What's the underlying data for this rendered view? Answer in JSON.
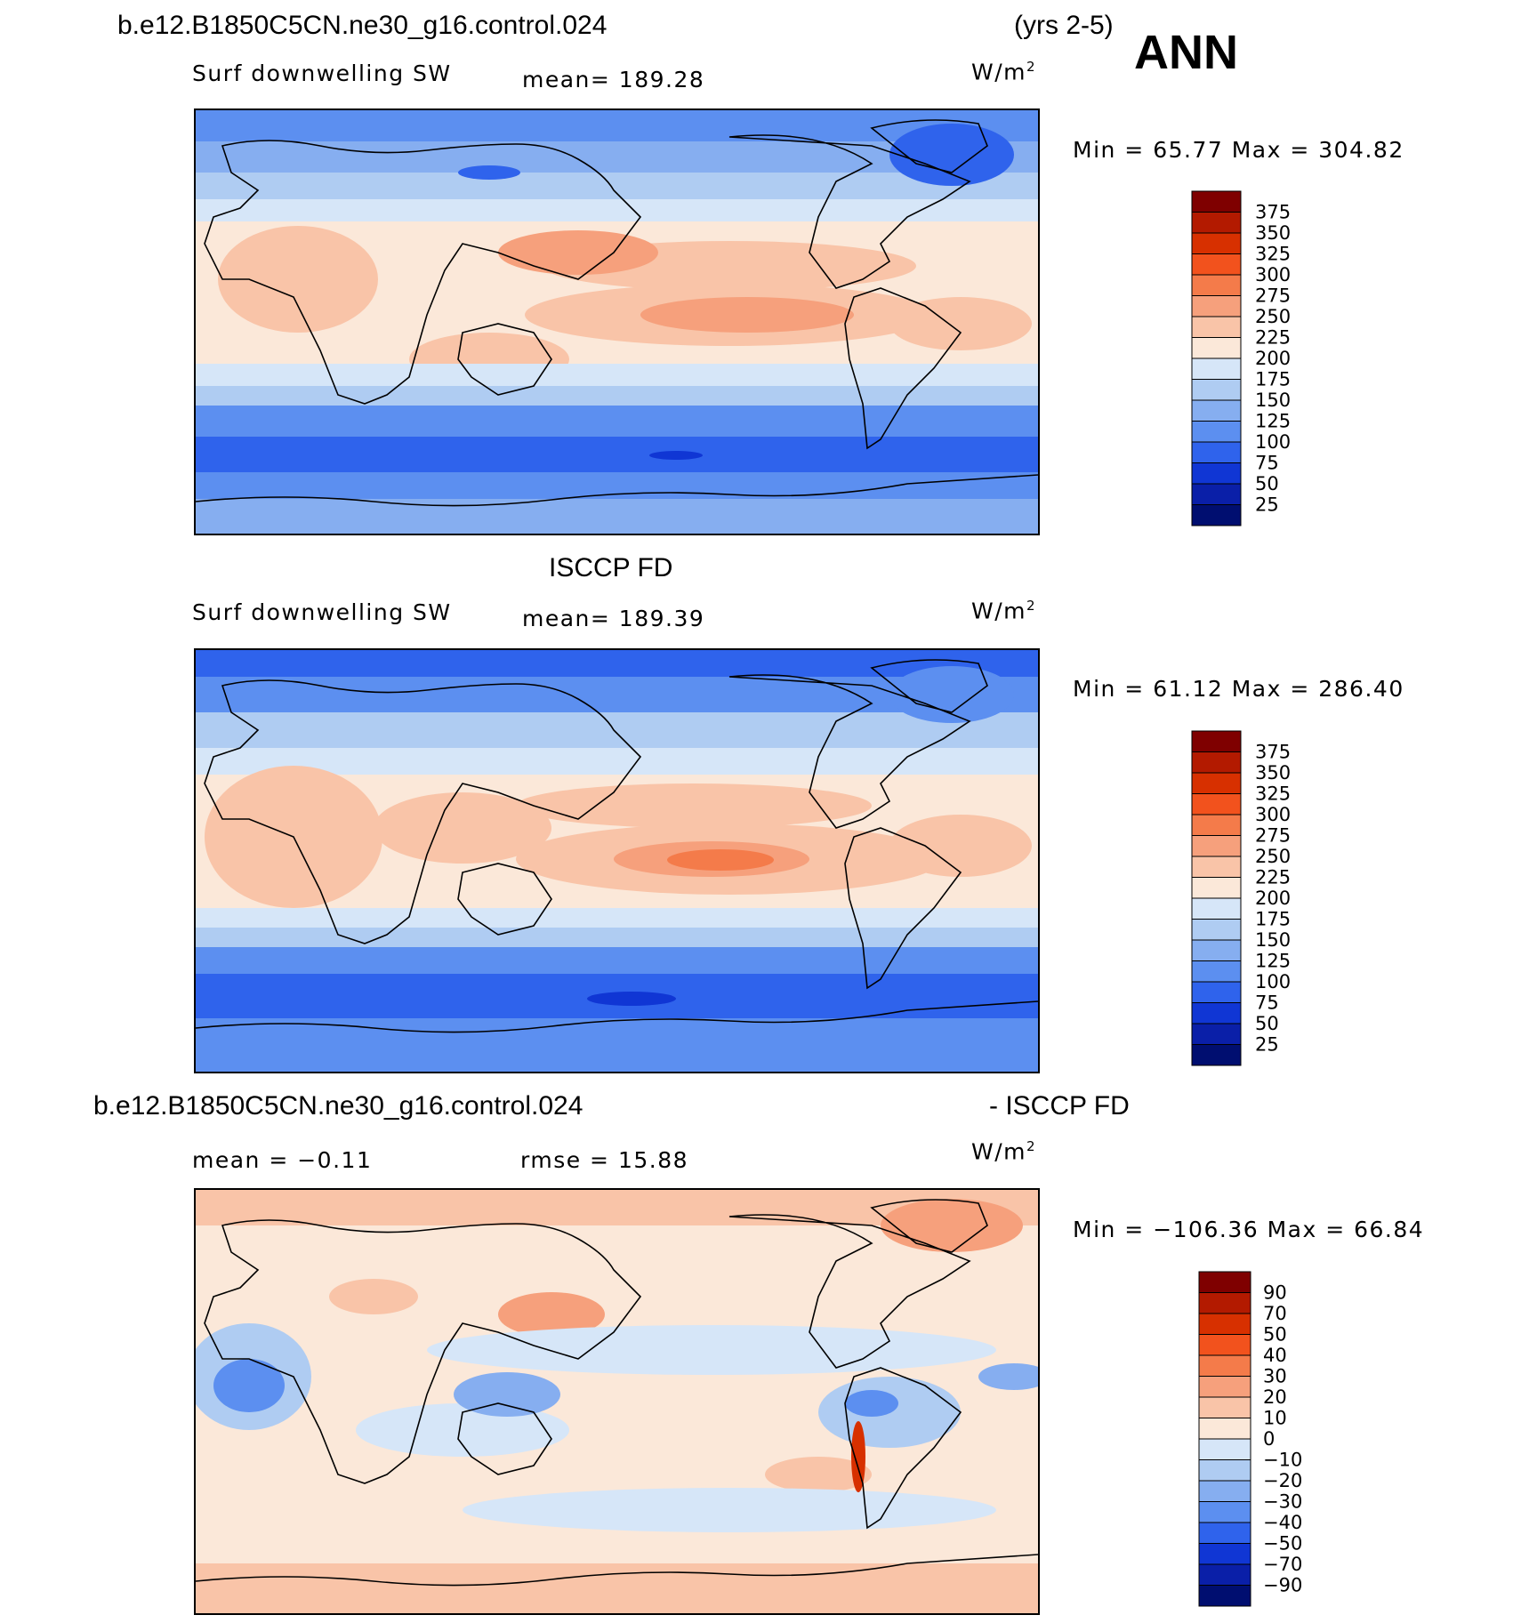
{
  "header": {
    "case_name": "b.e12.B1850C5CN.ne30_g16.control.024",
    "years": "(yrs 2-5)",
    "season": "ANN"
  },
  "panels": [
    {
      "id": "model",
      "variable": "Surf downwelling SW",
      "mean_text": "mean=  189.28",
      "units": "W/m",
      "units_sup": "2",
      "minmax_text": "Min =   65.77  Max  =  304.82",
      "colorbar_levels": [
        "375",
        "350",
        "325",
        "300",
        "275",
        "250",
        "225",
        "200",
        "175",
        "150",
        "125",
        "100",
        "75",
        "50",
        "25"
      ]
    },
    {
      "id": "obs",
      "title": "ISCCP FD",
      "variable": "Surf downwelling SW",
      "mean_text": "mean=  189.39",
      "units": "W/m",
      "units_sup": "2",
      "minmax_text": "Min =   61.12  Max  =  286.40",
      "colorbar_levels": [
        "375",
        "350",
        "325",
        "300",
        "275",
        "250",
        "225",
        "200",
        "175",
        "150",
        "125",
        "100",
        "75",
        "50",
        "25"
      ]
    },
    {
      "id": "diff",
      "title_left": "b.e12.B1850C5CN.ne30_g16.control.024",
      "title_right": "- ISCCP FD",
      "mean_text": "mean =   −0.11",
      "rmse_text": "rmse =    15.88",
      "units": "W/m",
      "units_sup": "2",
      "minmax_text": "Min = −106.36  Max =    66.84",
      "colorbar_levels": [
        "90",
        "70",
        "50",
        "40",
        "30",
        "20",
        "10",
        "0",
        "−10",
        "−20",
        "−30",
        "−40",
        "−50",
        "−70",
        "−90"
      ]
    }
  ],
  "colors": {
    "sw_scale": [
      "#7f0000",
      "#b31a00",
      "#d73000",
      "#f2521d",
      "#f47b4a",
      "#f6a07c",
      "#f9c4a8",
      "#fbe8d9",
      "#d6e6f8",
      "#afccf2",
      "#86aef0",
      "#5c8ff0",
      "#2f63ec",
      "#1036d4",
      "#0a1fa8",
      "#000e70"
    ],
    "diff_scale": [
      "#7f0000",
      "#b31a00",
      "#d73000",
      "#f2521d",
      "#f47b4a",
      "#f6a07c",
      "#f9c4a8",
      "#fbe8d9",
      "#d6e6f8",
      "#afccf2",
      "#86aef0",
      "#5c8ff0",
      "#2f63ec",
      "#1036d4",
      "#0a1fa8",
      "#000e70"
    ]
  }
}
